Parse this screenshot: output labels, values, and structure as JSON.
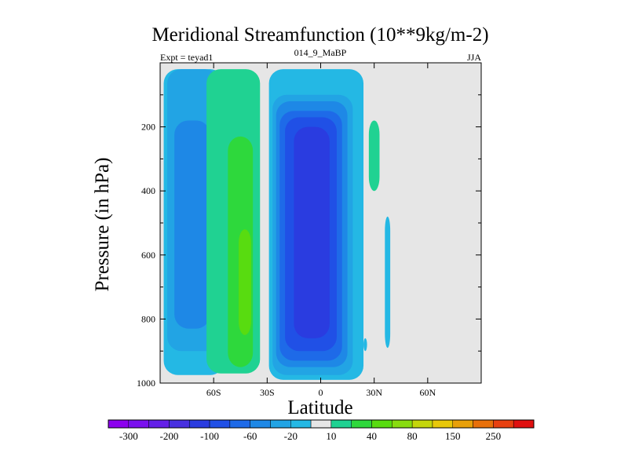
{
  "chart_data": {
    "type": "heatmap",
    "title": "Meridional Streamfunction (10**9kg/m-2)",
    "subtitle_left": "Expt = teyad1",
    "subtitle_center": "014_9_MaBP",
    "subtitle_right": "JJA",
    "xlabel": "Latitude",
    "ylabel": "Pressure (in hPa)",
    "xlim": [
      -90,
      90
    ],
    "ylim": [
      1000,
      0
    ],
    "x_ticks": [
      {
        "value": -60,
        "label": "60S"
      },
      {
        "value": -30,
        "label": "30S"
      },
      {
        "value": 0,
        "label": "0"
      },
      {
        "value": 30,
        "label": "30N"
      },
      {
        "value": 60,
        "label": "60N"
      }
    ],
    "y_ticks": [
      {
        "value": 200,
        "label": "200"
      },
      {
        "value": 400,
        "label": "400"
      },
      {
        "value": 600,
        "label": "600"
      },
      {
        "value": 800,
        "label": "800"
      },
      {
        "value": 1000,
        "label": "1000"
      }
    ],
    "missing_color": "#e6e6e6",
    "colorbar": {
      "levels": [
        -300,
        -250,
        -200,
        -150,
        -100,
        -80,
        -60,
        -40,
        -20,
        -10,
        10,
        20,
        40,
        60,
        80,
        100,
        150,
        200,
        250,
        300
      ],
      "labels": [
        {
          "value": -300,
          "label": "-300"
        },
        {
          "value": -200,
          "label": "-200"
        },
        {
          "value": -100,
          "label": "-100"
        },
        {
          "value": -60,
          "label": "-60"
        },
        {
          "value": -20,
          "label": "-20"
        },
        {
          "value": 10,
          "label": "10"
        },
        {
          "value": 40,
          "label": "40"
        },
        {
          "value": 80,
          "label": "80"
        },
        {
          "value": 150,
          "label": "150"
        },
        {
          "value": 250,
          "label": "250"
        }
      ],
      "colors": [
        "#8c00ee",
        "#7a10ee",
        "#6420e8",
        "#4830e0",
        "#2a3ce0",
        "#2050e6",
        "#1e6ae8",
        "#1e88e6",
        "#22a4e4",
        "#24b8e4",
        "#e6e6e6",
        "#20d292",
        "#2ed83c",
        "#58dc10",
        "#88dc10",
        "#c4d60c",
        "#e8c80a",
        "#e8a00a",
        "#e8700a",
        "#e84010",
        "#e01010"
      ]
    },
    "contour_regions": [
      {
        "name": "sh-cell-light",
        "value": -15,
        "lat_min": -88,
        "lat_max": -54,
        "p_top": 20,
        "p_bottom": 975
      },
      {
        "name": "sh-cell-medium",
        "value": -30,
        "lat_min": -86,
        "lat_max": -57,
        "p_top": 20,
        "p_bottom": 900
      },
      {
        "name": "sh-cell-core",
        "value": -50,
        "lat_min": -82,
        "lat_max": -62,
        "p_top": 180,
        "p_bottom": 830
      },
      {
        "name": "ferrel-outer",
        "value": 15,
        "lat_min": -64,
        "lat_max": -34,
        "p_top": 20,
        "p_bottom": 970
      },
      {
        "name": "ferrel-mid",
        "value": 30,
        "lat_min": -52,
        "lat_max": -38,
        "p_top": 230,
        "p_bottom": 950
      },
      {
        "name": "ferrel-core",
        "value": 50,
        "lat_min": -46,
        "lat_max": -39,
        "p_top": 520,
        "p_bottom": 850
      },
      {
        "name": "hadley-outer",
        "value": -15,
        "lat_min": -29,
        "lat_max": 24,
        "p_top": 20,
        "p_bottom": 990
      },
      {
        "name": "hadley-2",
        "value": -30,
        "lat_min": -27,
        "lat_max": 18,
        "p_top": 100,
        "p_bottom": 975
      },
      {
        "name": "hadley-3",
        "value": -50,
        "lat_min": -25,
        "lat_max": 15,
        "p_top": 120,
        "p_bottom": 950
      },
      {
        "name": "hadley-4",
        "value": -70,
        "lat_min": -23,
        "lat_max": 12,
        "p_top": 150,
        "p_bottom": 930
      },
      {
        "name": "hadley-5",
        "value": -90,
        "lat_min": -20,
        "lat_max": 9,
        "p_top": 170,
        "p_bottom": 900
      },
      {
        "name": "hadley-core",
        "value": -120,
        "lat_min": -15,
        "lat_max": 5,
        "p_top": 200,
        "p_bottom": 860
      },
      {
        "name": "nh-small-cell",
        "value": 15,
        "lat_min": 27,
        "lat_max": 33,
        "p_top": 180,
        "p_bottom": 400
      },
      {
        "name": "nh-thin-band",
        "value": -15,
        "lat_min": 36,
        "lat_max": 39,
        "p_top": 480,
        "p_bottom": 890
      },
      {
        "name": "nh-speck",
        "value": -15,
        "lat_min": 24,
        "lat_max": 26,
        "p_top": 860,
        "p_bottom": 900
      }
    ]
  }
}
